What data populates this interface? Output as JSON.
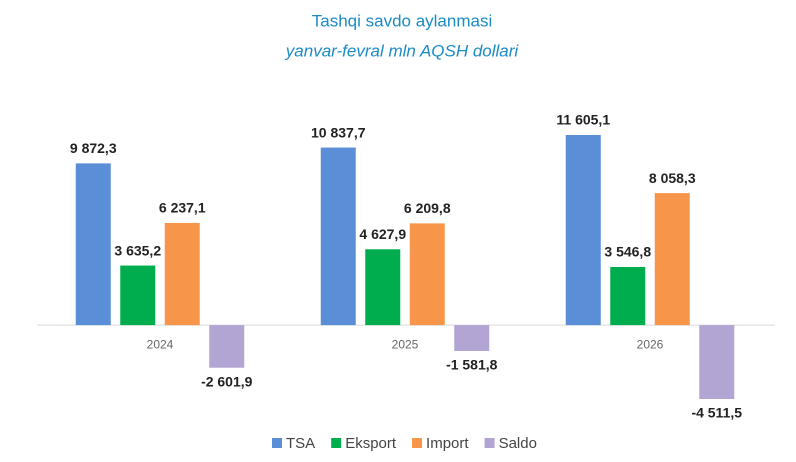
{
  "chart_data": {
    "type": "bar",
    "title": "Tashqi savdo aylanmasi",
    "subtitle": "yanvar-fevral mln AQSH dollari",
    "categories": [
      "2024",
      "2025",
      "2026"
    ],
    "series": [
      {
        "name": "TSA",
        "color": "#5a8fd8",
        "values": [
          9872.3,
          10837.7,
          11605.1
        ],
        "value_labels": [
          "9 872,3",
          "10 837,7",
          "11 605,1"
        ]
      },
      {
        "name": "Eksport",
        "color": "#00ad4e",
        "values": [
          3635.2,
          4627.9,
          3546.8
        ],
        "value_labels": [
          "3 635,2",
          "4 627,9",
          "3 546,8"
        ]
      },
      {
        "name": "Import",
        "color": "#f7964a",
        "values": [
          6237.1,
          6209.8,
          8058.3
        ],
        "value_labels": [
          "6 237,1",
          "6 209,8",
          "8 058,3"
        ]
      },
      {
        "name": "Saldo",
        "color": "#b3a5d3",
        "values": [
          -2601.9,
          -1581.8,
          -4511.5
        ],
        "value_labels": [
          "-2 601,9",
          "-1 581,8",
          "-4 511,5"
        ]
      }
    ],
    "legend": "bottom"
  }
}
